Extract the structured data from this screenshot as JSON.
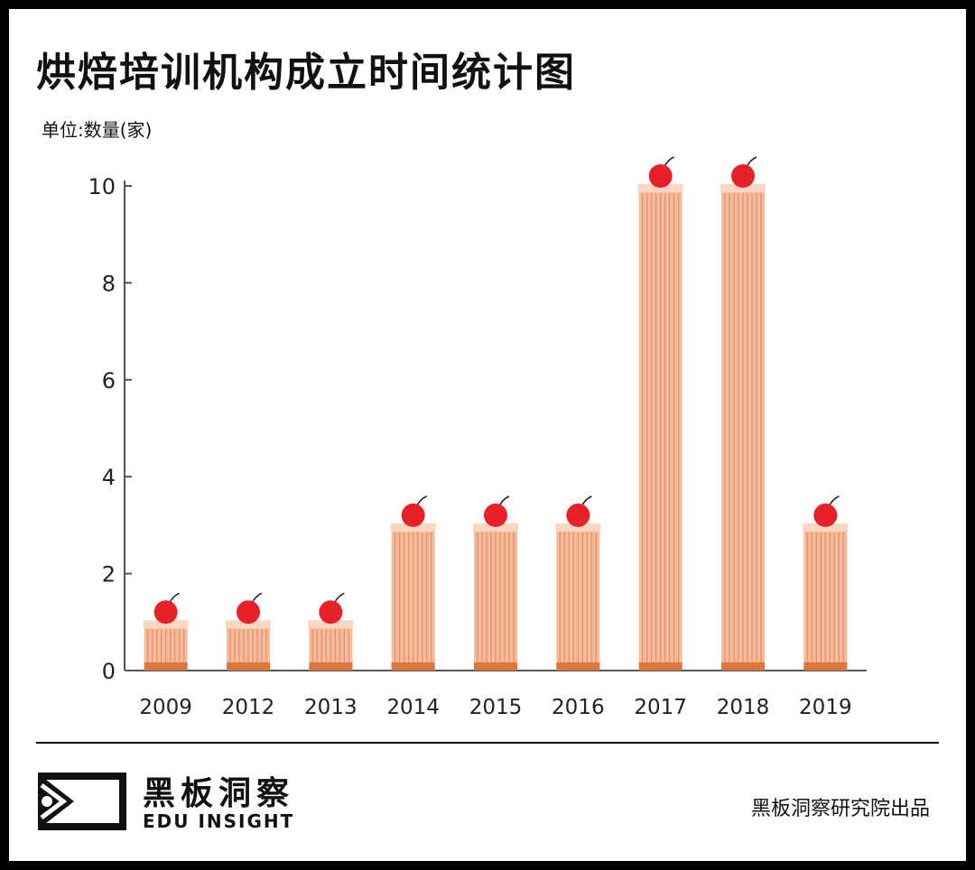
{
  "header": {
    "title": "烘焙培训机构成立时间统计图",
    "unit_label": "单位:数量(家)"
  },
  "footer": {
    "brand_cn": "黑板洞察",
    "brand_en": "EDU INSIGHT",
    "credit": "黑板洞察研究院出品"
  },
  "colors": {
    "bar_fill": "#f4bc9c",
    "bar_stripe": "#e3895b",
    "bar_top": "#fbd6c1",
    "bar_base": "#d9773f",
    "cherry": "#e8202a",
    "axis": "#555555"
  },
  "chart_data": {
    "type": "bar",
    "title": "烘焙培训机构成立时间统计图",
    "ylabel": "单位:数量(家)",
    "xlabel": "",
    "categories": [
      "2009",
      "2012",
      "2013",
      "2014",
      "2015",
      "2016",
      "2017",
      "2018",
      "2019"
    ],
    "values": [
      1,
      1,
      1,
      3,
      3,
      3,
      10,
      10,
      3
    ],
    "ylim": [
      0,
      10
    ],
    "yticks": [
      0,
      2,
      4,
      6,
      8,
      10
    ],
    "grid": false,
    "legend": "none"
  }
}
